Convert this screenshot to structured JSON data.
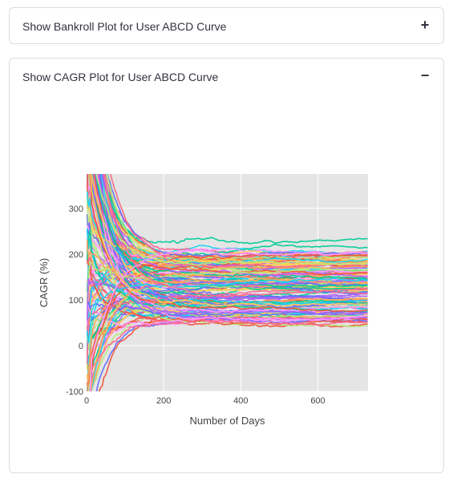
{
  "expanders": [
    {
      "title": "Show Bankroll Plot for User ABCD Curve",
      "toggle": "+",
      "toggle_icon": "plus-icon"
    },
    {
      "title": "Show CAGR Plot for User ABCD Curve",
      "toggle": "−",
      "toggle_icon": "minus-icon"
    }
  ],
  "chart_data": {
    "type": "line",
    "title": "",
    "xlabel": "Number of Days",
    "ylabel": "CAGR (%)",
    "xlim": [
      0,
      730
    ],
    "ylim": [
      -100,
      375
    ],
    "xticks": [
      0,
      200,
      400,
      600
    ],
    "yticks": [
      -100,
      0,
      100,
      200,
      300
    ],
    "grid": true,
    "plot_background": "#e5e5e5",
    "series_count": 150,
    "series_note": "Many simulated CAGR paths; each starts volatile near day 0 and converges to a final CAGR between roughly 55% and 210% by day 730.",
    "final_value_range": [
      55,
      210
    ],
    "colors": [
      "#636efa",
      "#ef553b",
      "#00cc96",
      "#ab63fa",
      "#ffa15a",
      "#19d3f3",
      "#ff6692",
      "#b6e880",
      "#ff97ff",
      "#fecb52"
    ]
  }
}
